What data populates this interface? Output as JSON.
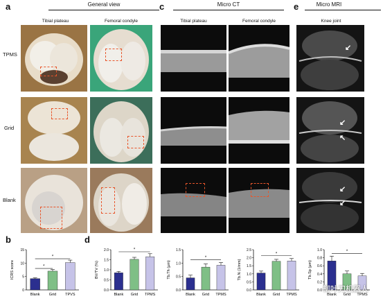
{
  "panels": {
    "a": {
      "letter": "a",
      "title": "General view",
      "cols": [
        "Tibial plateau",
        "Femoral condyle"
      ]
    },
    "c": {
      "letter": "c",
      "title": "Micro CT",
      "cols": [
        "Tibial plateau",
        "Femoral condyle"
      ]
    },
    "e": {
      "letter": "e",
      "title": "Micro MRI",
      "cols": [
        "Knee joint"
      ]
    },
    "b": {
      "letter": "b"
    },
    "d": {
      "letter": "d"
    }
  },
  "rows": [
    "TPMS",
    "Grid",
    "Blank"
  ],
  "watermark": "柳叶刀机器人",
  "colors": {
    "blank": "#2b2f8f",
    "grid": "#7fbf86",
    "tpms": "#c6c3e8",
    "roi": "#e8552a"
  },
  "chart_data": [
    {
      "type": "bar",
      "panel": "b",
      "categories": [
        "Blank",
        "Grid",
        "TPVS"
      ],
      "values": [
        4.2,
        7.0,
        10.2
      ],
      "errors": [
        0.3,
        0.6,
        0.9
      ],
      "ylabel": "ICRS score",
      "ylim": [
        0,
        15
      ],
      "yticks": [
        "0",
        "5",
        "10",
        "15"
      ],
      "significance": [
        "*",
        "*"
      ]
    },
    {
      "type": "bar",
      "panel": "d1",
      "categories": [
        "Blank",
        "Grid",
        "TPMS"
      ],
      "values": [
        0.85,
        1.52,
        1.65
      ],
      "errors": [
        0.07,
        0.1,
        0.15
      ],
      "ylabel": "BV/TV (%)",
      "ylim": [
        0,
        2.0
      ],
      "yticks": [
        "0.0",
        "0.5",
        "1.0",
        "1.5",
        "2.0"
      ],
      "significance": [
        "*"
      ]
    },
    {
      "type": "bar",
      "panel": "d2",
      "categories": [
        "Blank",
        "Grid",
        "TPMS"
      ],
      "values": [
        0.45,
        0.85,
        0.92
      ],
      "errors": [
        0.1,
        0.12,
        0.1
      ],
      "ylabel": "Tb.Th (μm)",
      "ylim": [
        0,
        1.5
      ],
      "yticks": [
        "0.0",
        "0.5",
        "1.0",
        "1.5"
      ],
      "significance": [
        "*"
      ]
    },
    {
      "type": "bar",
      "panel": "d3",
      "categories": [
        "Blank",
        "Grid",
        "TPMS"
      ],
      "values": [
        1.05,
        1.78,
        1.8
      ],
      "errors": [
        0.12,
        0.12,
        0.15
      ],
      "ylabel": "Tb.N (1/mm)",
      "ylim": [
        0,
        2.5
      ],
      "yticks": [
        "0.0",
        "0.5",
        "1.0",
        "1.5",
        "2.0",
        "2.5"
      ],
      "significance": [
        "*"
      ]
    },
    {
      "type": "bar",
      "panel": "d4",
      "categories": [
        "Blank",
        "Grid",
        "TPMS"
      ],
      "values": [
        0.72,
        0.4,
        0.35
      ],
      "errors": [
        0.12,
        0.07,
        0.06
      ],
      "ylabel": "Tb.Sp (μm)",
      "ylim": [
        0,
        1.0
      ],
      "yticks": [
        "0.0",
        "0.2",
        "0.4",
        "0.6",
        "0.8",
        "1.0"
      ],
      "significance": [
        "*"
      ]
    }
  ]
}
